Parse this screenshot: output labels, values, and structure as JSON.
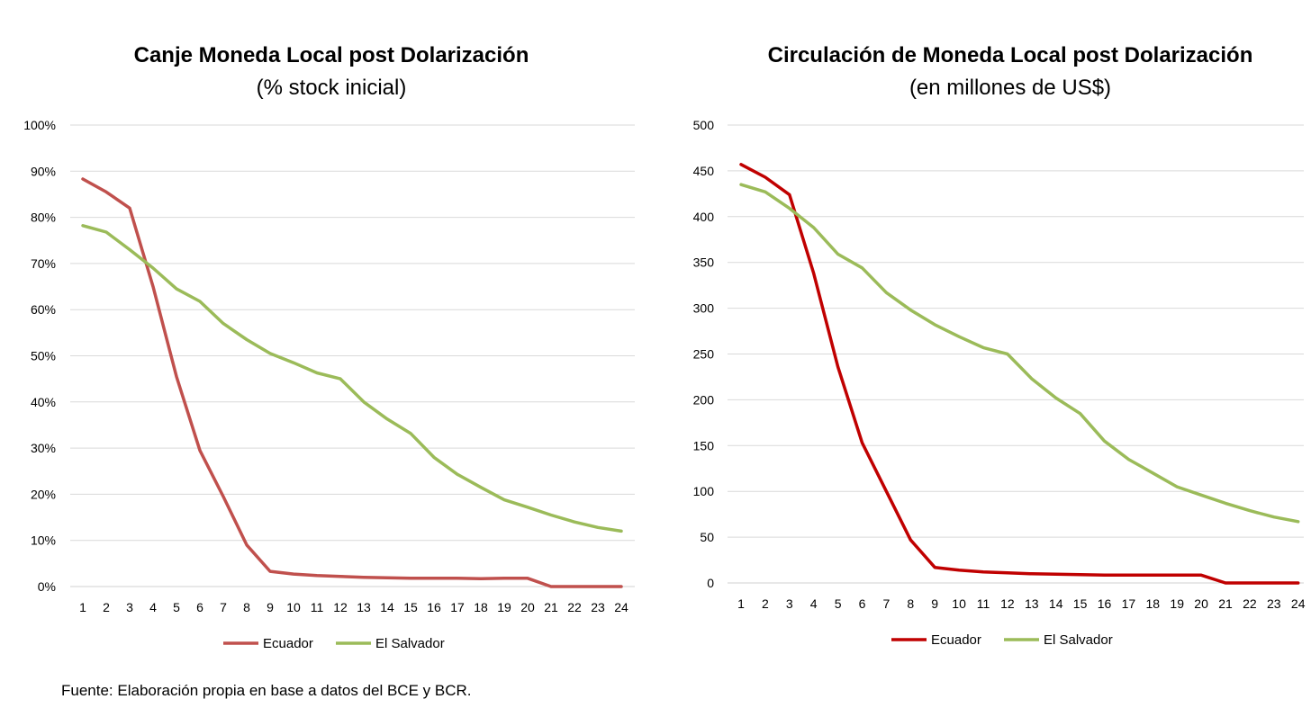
{
  "chart_data": [
    {
      "type": "line",
      "title": "Canje Moneda Local post Dolarización",
      "subtitle": "(% stock inicial)",
      "x": [
        1,
        2,
        3,
        4,
        5,
        6,
        7,
        8,
        9,
        10,
        11,
        12,
        13,
        14,
        15,
        16,
        17,
        18,
        19,
        20,
        21,
        22,
        23,
        24
      ],
      "ylim": [
        0,
        100
      ],
      "y_ticks": [
        "0%",
        "10%",
        "20%",
        "30%",
        "40%",
        "50%",
        "60%",
        "70%",
        "80%",
        "90%",
        "100%"
      ],
      "grid": true,
      "legend_position": "bottom",
      "series": [
        {
          "name": "Ecuador",
          "color": "#c0504d",
          "values": [
            88.3,
            85.5,
            82.0,
            65.0,
            45.5,
            29.5,
            19.5,
            9.0,
            3.3,
            2.7,
            2.4,
            2.2,
            2.0,
            1.9,
            1.8,
            1.8,
            1.8,
            1.7,
            1.8,
            1.8,
            0.0,
            0.0,
            0.0,
            0.0
          ]
        },
        {
          "name": "El Salvador",
          "color": "#9bbb59",
          "values": [
            78.2,
            76.8,
            73.0,
            69.0,
            64.5,
            61.8,
            57.0,
            53.5,
            50.5,
            48.5,
            46.3,
            45.0,
            40.0,
            36.3,
            33.2,
            28.0,
            24.3,
            21.5,
            18.8,
            17.2,
            15.5,
            14.0,
            12.8,
            12.0
          ]
        }
      ]
    },
    {
      "type": "line",
      "title": "Circulación de Moneda Local post Dolarización",
      "subtitle": "(en millones de US$)",
      "x": [
        1,
        2,
        3,
        4,
        5,
        6,
        7,
        8,
        9,
        10,
        11,
        12,
        13,
        14,
        15,
        16,
        17,
        18,
        19,
        20,
        21,
        22,
        23,
        24
      ],
      "ylim": [
        0,
        500
      ],
      "y_ticks": [
        "0",
        "50",
        "100",
        "150",
        "200",
        "250",
        "300",
        "350",
        "400",
        "450",
        "500"
      ],
      "grid": true,
      "legend_position": "bottom",
      "series": [
        {
          "name": "Ecuador",
          "color": "#c00000",
          "values": [
            457,
            443,
            424,
            338,
            236,
            153,
            100,
            47,
            17,
            14,
            12,
            11,
            10,
            9.5,
            9,
            8.5,
            8.5,
            8.5,
            8.5,
            8.5,
            0,
            0,
            0,
            0
          ]
        },
        {
          "name": "El Salvador",
          "color": "#9bbb59",
          "values": [
            435,
            427,
            409,
            388,
            359,
            344,
            317,
            298,
            282,
            269,
            257,
            250,
            223,
            202,
            185,
            155,
            135,
            120,
            105,
            96,
            87,
            79,
            72,
            67
          ]
        }
      ]
    }
  ],
  "source_note": "Fuente: Elaboración propia en base a datos del BCE y BCR."
}
